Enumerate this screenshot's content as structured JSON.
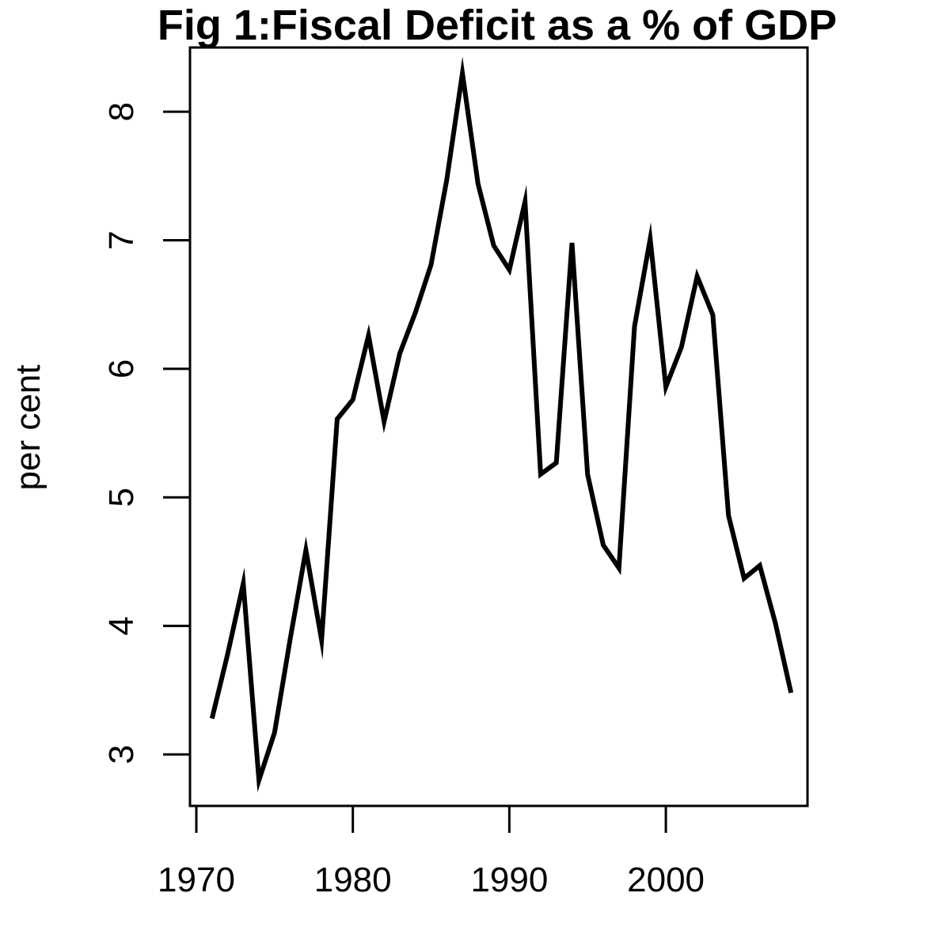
{
  "chart_data": {
    "type": "line",
    "title": "Fig 1:Fiscal Deficit as a % of GDP",
    "xlabel": "",
    "ylabel": "per cent",
    "xlim": [
      1970,
      2009
    ],
    "ylim": [
      2.6,
      8.5
    ],
    "x_ticks": [
      1970,
      1980,
      1990,
      2000
    ],
    "y_ticks": [
      3,
      4,
      5,
      6,
      7,
      8
    ],
    "grid": false,
    "series": [
      {
        "color": "#000000",
        "x": [
          1971,
          1972,
          1973,
          1974,
          1975,
          1976,
          1977,
          1978,
          1979,
          1980,
          1981,
          1982,
          1983,
          1984,
          1985,
          1986,
          1987,
          1988,
          1989,
          1990,
          1991,
          1992,
          1993,
          1994,
          1995,
          1996,
          1997,
          1998,
          1999,
          2000,
          2001,
          2002,
          2003,
          2004,
          2005,
          2006,
          2007,
          2008
        ],
        "y": [
          3.28,
          3.78,
          4.33,
          2.8,
          3.17,
          3.9,
          4.59,
          3.89,
          5.61,
          5.76,
          6.26,
          5.59,
          6.12,
          6.44,
          6.81,
          7.47,
          8.3,
          7.44,
          6.96,
          6.77,
          7.3,
          5.18,
          5.27,
          6.98,
          5.18,
          4.63,
          4.45,
          6.33,
          7.01,
          5.86,
          6.17,
          6.72,
          6.42,
          4.86,
          4.37,
          4.47,
          4.02,
          3.48
        ]
      }
    ]
  }
}
